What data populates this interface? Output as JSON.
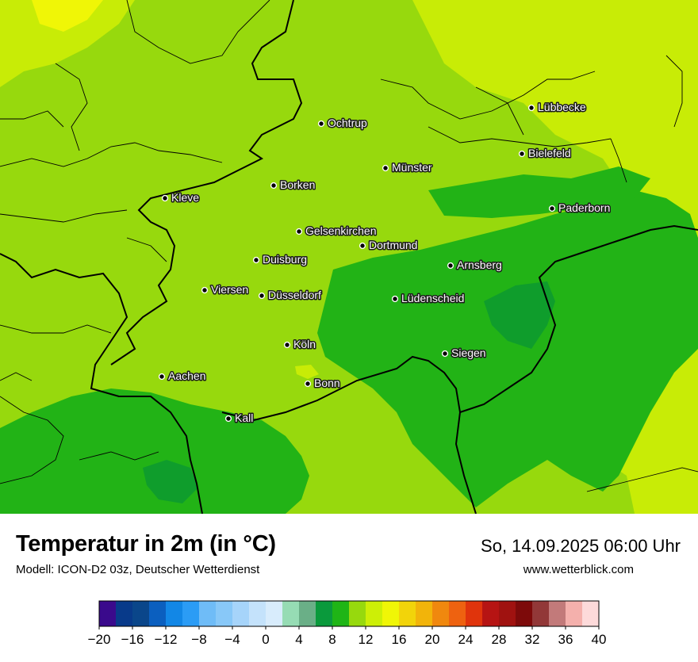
{
  "map": {
    "cities": [
      {
        "name": "Lübbecke"
      },
      {
        "name": "Ochtrup"
      },
      {
        "name": "Bielefeld"
      },
      {
        "name": "Münster"
      },
      {
        "name": "Borken"
      },
      {
        "name": "Kleve"
      },
      {
        "name": "Paderborn"
      },
      {
        "name": "Gelsenkirchen"
      },
      {
        "name": "Dortmund"
      },
      {
        "name": "Duisburg"
      },
      {
        "name": "Arnsberg"
      },
      {
        "name": "Viersen"
      },
      {
        "name": "Düsseldorf"
      },
      {
        "name": "Lüdenscheid"
      },
      {
        "name": "Köln"
      },
      {
        "name": "Siegen"
      },
      {
        "name": "Aachen"
      },
      {
        "name": "Bonn"
      },
      {
        "name": "Kall"
      }
    ]
  },
  "footer": {
    "title": "Temperatur in 2m (in °C)",
    "model": "Modell: ICON-D2 03z, Deutscher Wetterdienst",
    "datetime": "So, 14.09.2025 06:00 Uhr",
    "website": "www.wetterblick.com"
  },
  "legend": {
    "tick_labels": [
      "−20",
      "−16",
      "−12",
      "−8",
      "−4",
      "0",
      "4",
      "8",
      "12",
      "16",
      "20",
      "24",
      "28",
      "32",
      "36",
      "40"
    ],
    "colors": [
      "#3a0a8c",
      "#083a8a",
      "#0a468a",
      "#0b5fbf",
      "#1287e6",
      "#2b9cf5",
      "#6fbcf7",
      "#88c8f8",
      "#a6d4fa",
      "#c4e2fb",
      "#d8ecfc",
      "#96dcb4",
      "#6aaf87",
      "#0a9a3c",
      "#1fb516",
      "#97d90d",
      "#cdef06",
      "#f0f606",
      "#f2d40a",
      "#f2b40a",
      "#f0880e",
      "#ee6210",
      "#e0340c",
      "#b61413",
      "#a01210",
      "#7d0a0a",
      "#923838",
      "#c27a7a",
      "#f4b0ac",
      "#fddada"
    ]
  }
}
